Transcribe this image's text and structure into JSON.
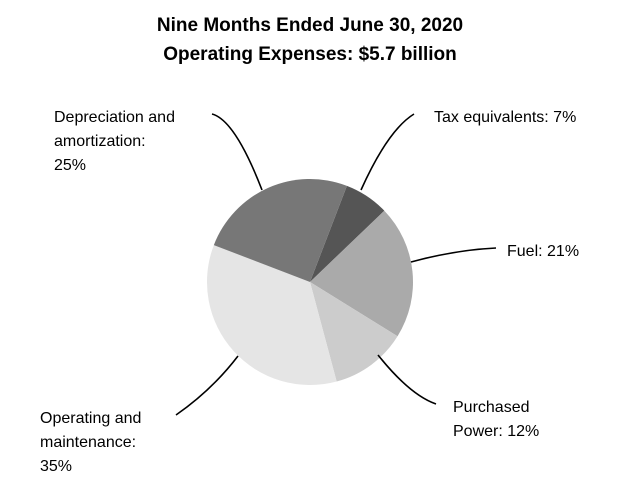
{
  "chart_data": {
    "type": "pie",
    "title": "Nine Months Ended June 30, 2020",
    "subtitle": "Operating Expenses: $5.7 billion",
    "legend": "none",
    "slices": [
      {
        "name": "Tax equivalents",
        "value": 7,
        "label_lines": [
          "Tax equivalents: 7%"
        ],
        "color": "#555555"
      },
      {
        "name": "Fuel",
        "value": 21,
        "label_lines": [
          "Fuel: 21%"
        ],
        "color": "#aaaaaa"
      },
      {
        "name": "Purchased Power",
        "value": 12,
        "label_lines": [
          "Purchased",
          "Power: 12%"
        ],
        "color": "#cccccc"
      },
      {
        "name": "Operating and maintenance",
        "value": 35,
        "label_lines": [
          "Operating and",
          "maintenance:",
          "35%"
        ],
        "color": "#e5e5e5"
      },
      {
        "name": "Depreciation and amortization",
        "value": 25,
        "label_lines": [
          "Depreciation and",
          "amortization:",
          "25%"
        ],
        "color": "#777777"
      }
    ]
  }
}
